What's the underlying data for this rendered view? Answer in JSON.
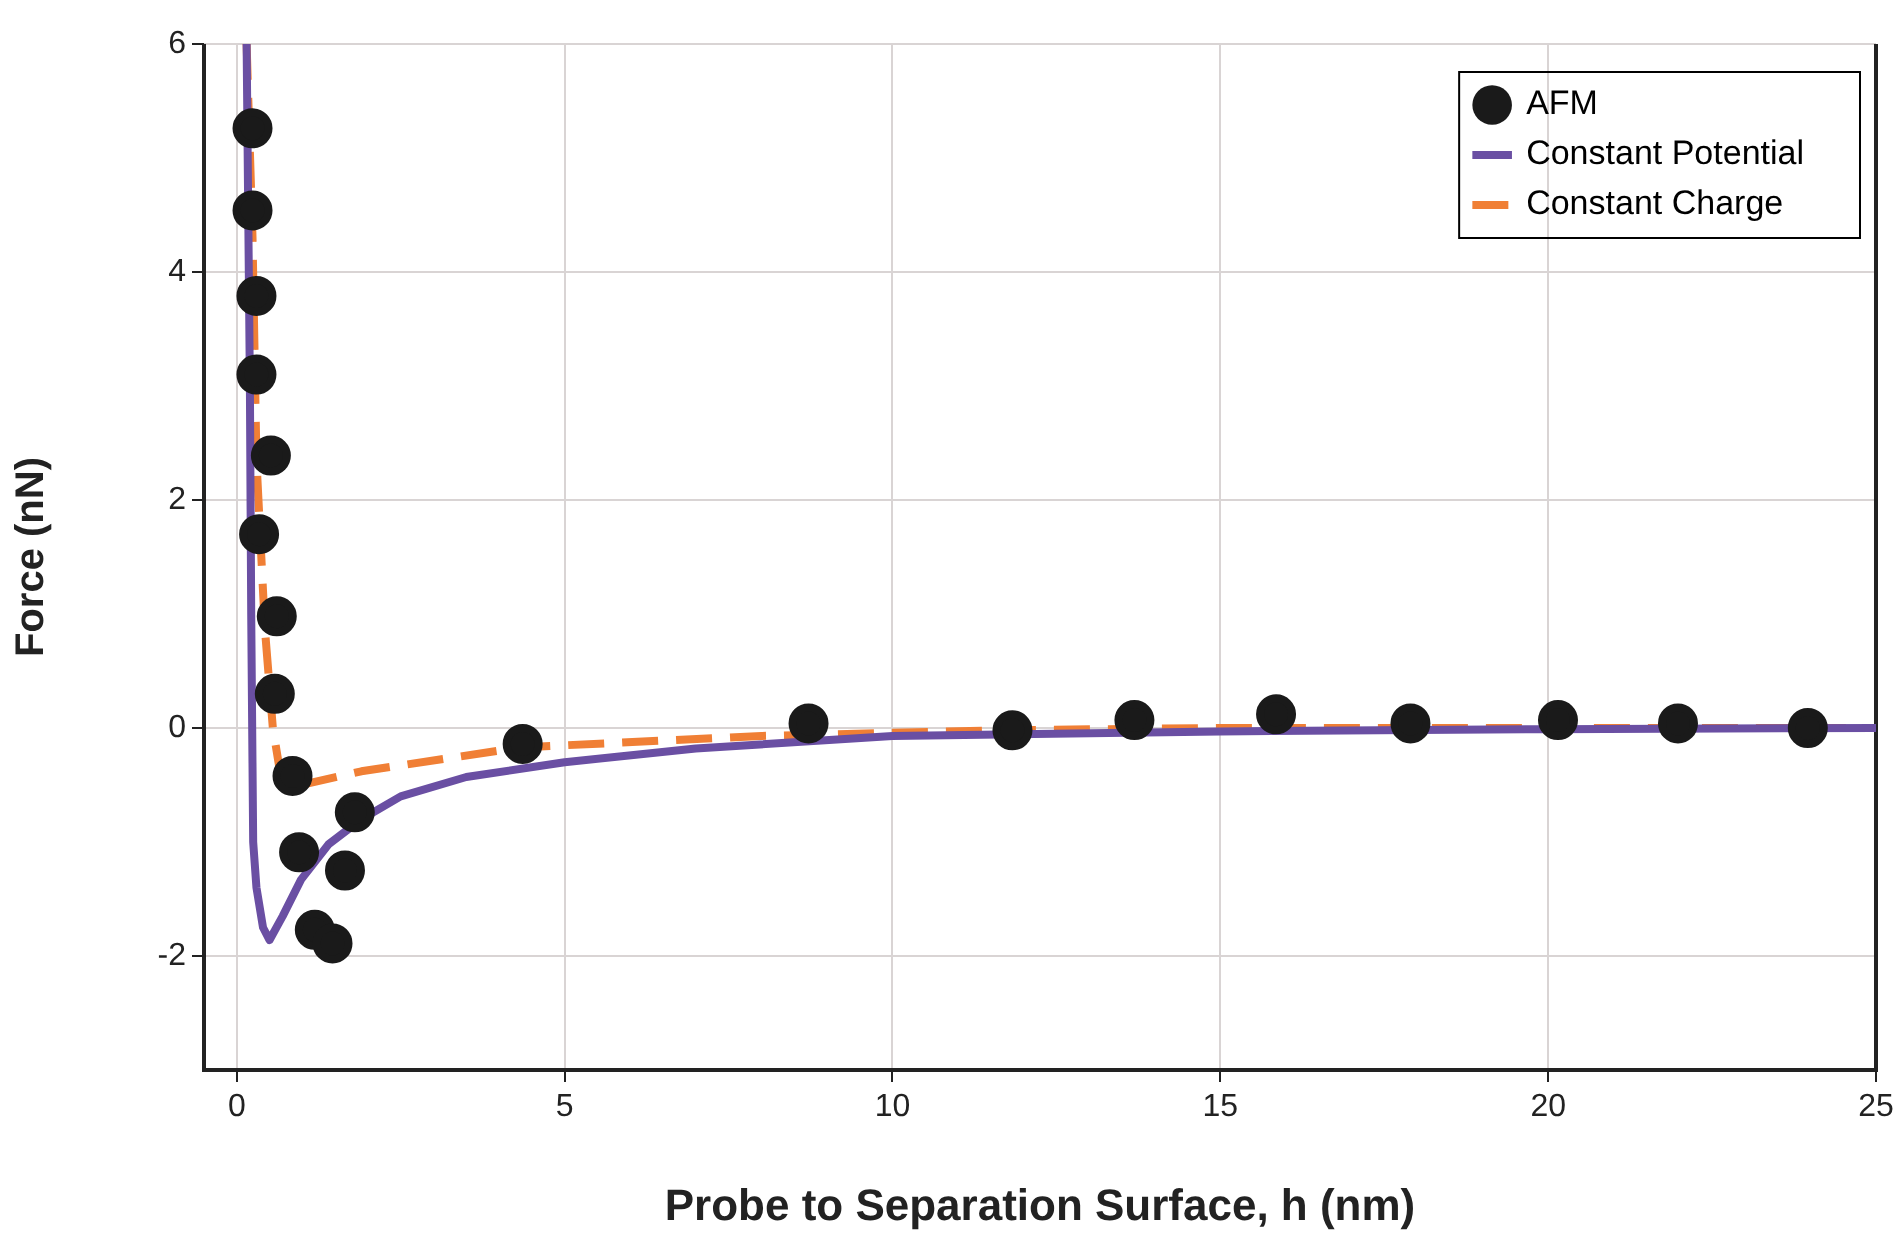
{
  "chart_data": {
    "type": "scatter",
    "xlabel": "Probe to Separation Surface, h (nm)",
    "ylabel": "Force (nN)",
    "xlim": [
      -0.5,
      25
    ],
    "xticks": [
      0,
      5,
      10,
      15,
      20,
      25
    ],
    "ylim": [
      -3,
      6
    ],
    "yticks": [
      -2,
      0,
      2,
      4,
      6
    ],
    "grid": true,
    "legend": "top right",
    "series": [
      {
        "name": "AFM",
        "type": "scatter",
        "marker": "circle",
        "color": "#1a1a1a",
        "x": [
          0.24,
          0.24,
          0.3,
          0.3,
          0.52,
          0.34,
          0.61,
          0.58,
          0.85,
          0.95,
          1.19,
          1.46,
          1.65,
          1.8,
          4.36,
          8.72,
          11.83,
          13.69,
          15.85,
          17.9,
          20.15,
          21.98,
          23.96
        ],
        "values": [
          5.26,
          4.54,
          3.79,
          3.1,
          2.39,
          1.7,
          0.98,
          0.3,
          -0.42,
          -1.09,
          -1.77,
          -1.89,
          -1.25,
          -0.74,
          -0.14,
          0.04,
          -0.02,
          0.07,
          0.12,
          0.04,
          0.07,
          0.04,
          0
        ]
      },
      {
        "name": "Constant Potential",
        "type": "line",
        "marker": "none",
        "line_style": "solid",
        "color": "#6a4fa3",
        "x": [
          0.15,
          0.2,
          0.22,
          0.25,
          0.3,
          0.4,
          0.5,
          0.7,
          0.98,
          1.4,
          1.9,
          2.5,
          3.5,
          5,
          7,
          10,
          15,
          20,
          25
        ],
        "values": [
          6,
          3,
          1,
          -1,
          -1.4,
          -1.75,
          -1.86,
          -1.65,
          -1.33,
          -1.02,
          -0.8,
          -0.6,
          -0.43,
          -0.3,
          -0.18,
          -0.07,
          -0.03,
          -0.01,
          0
        ]
      },
      {
        "name": "Constant Charge",
        "type": "line",
        "marker": "none",
        "line_style": "dashed",
        "color": "#f07f35",
        "x": [
          0.15,
          0.24,
          0.3,
          0.43,
          0.55,
          0.67,
          0.98,
          1.9,
          4.33,
          8,
          11.6,
          15,
          20,
          25
        ],
        "values": [
          6,
          4.3,
          2.35,
          0.86,
          0,
          -0.42,
          -0.5,
          -0.38,
          -0.17,
          -0.07,
          -0.02,
          0,
          0,
          0
        ]
      }
    ]
  }
}
